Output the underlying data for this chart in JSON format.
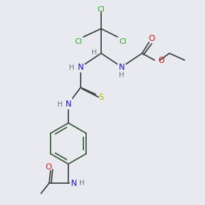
{
  "bg_color": "#e8eaf0",
  "atom_colors": {
    "C": "#404040",
    "N": "#1010cc",
    "O": "#cc2020",
    "S": "#b8b800",
    "Cl": "#20aa20",
    "H": "#707070"
  },
  "bond_color": "#404040",
  "ring_color": "#3a5a3a"
}
